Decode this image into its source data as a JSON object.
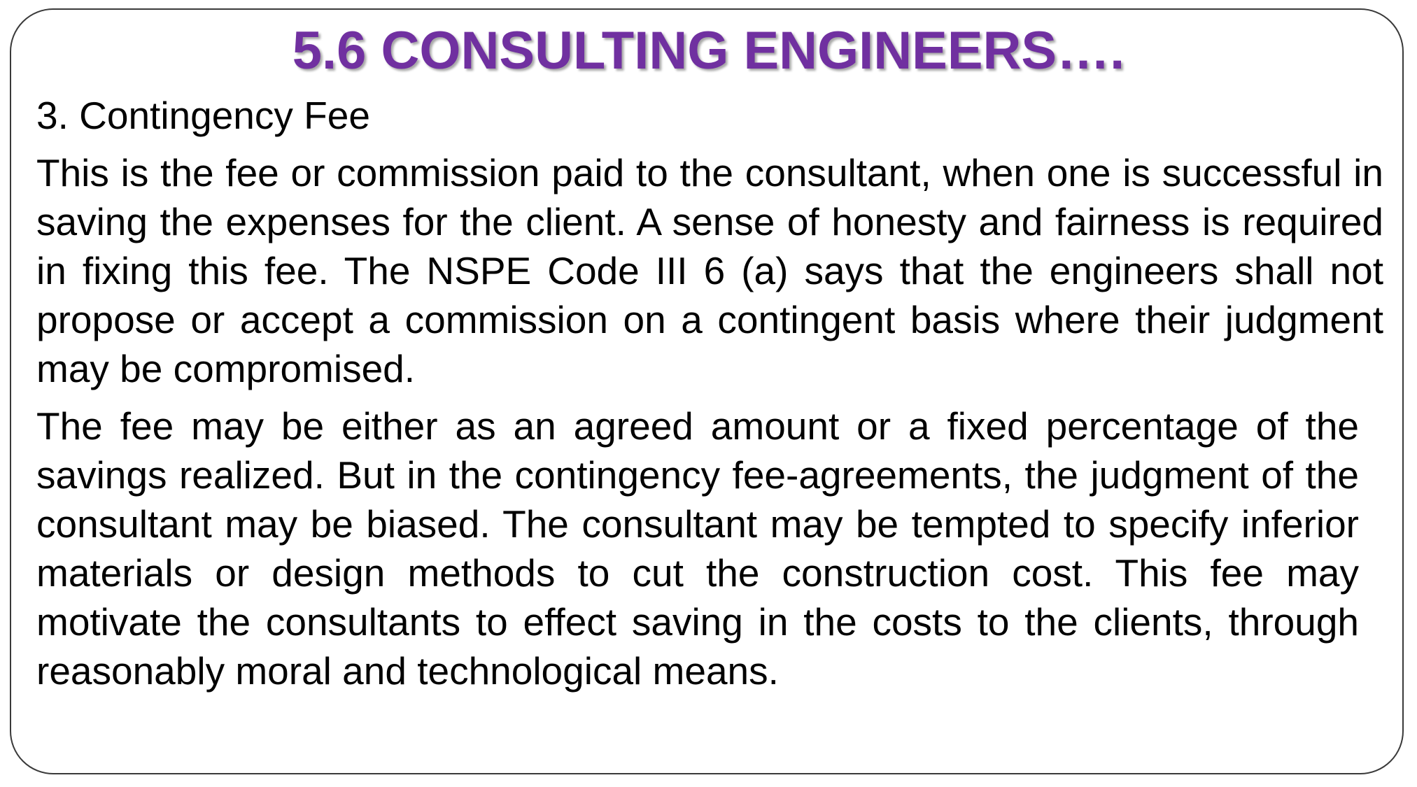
{
  "slide": {
    "title": "5.6 CONSULTING ENGINEERS….",
    "subheading": "3. Contingency Fee",
    "paragraphs": [
      "This is the fee or commission paid to the consultant, when one is successful in saving the expenses for the client. A sense of honesty and fairness is required in fixing this fee. The NSPE Code III 6 (a) says that the engineers shall not propose or accept a commission on a contingent basis where their judgment may be compromised.",
      "The fee may be either as an agreed amount or a fixed percentage of the savings realized. But in the contingency fee-agreements, the judgment of the consultant may be biased. The consultant may be tempted to specify inferior materials or design methods to cut the construction cost. This fee may motivate the consultants to effect saving in the costs to the clients, through reasonably moral and technological means."
    ]
  },
  "colors": {
    "title": "#7030a0",
    "text": "#000000",
    "border": "#3a3a3a"
  }
}
